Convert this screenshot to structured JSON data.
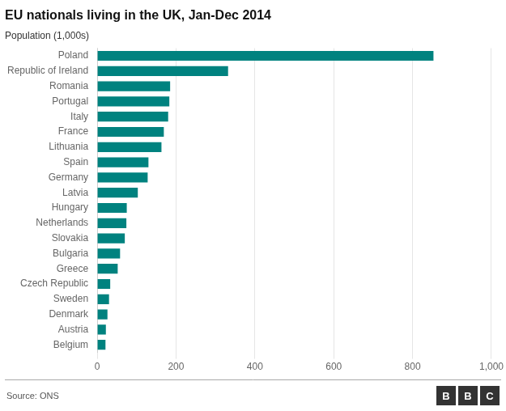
{
  "chart_data": {
    "type": "bar",
    "orientation": "horizontal",
    "title": "EU nationals living in the UK, Jan-Dec 2014",
    "subtitle": "Population (1,000s)",
    "annotations": [
      "Source: ONS",
      "BBC"
    ],
    "categories": [
      "Poland",
      "Republic of Ireland",
      "Romania",
      "Portugal",
      "Italy",
      "France",
      "Lithuania",
      "Spain",
      "Germany",
      "Latvia",
      "Hungary",
      "Netherlands",
      "Slovakia",
      "Bulgaria",
      "Greece",
      "Czech Republic",
      "Sweden",
      "Denmark",
      "Austria",
      "Belgium"
    ],
    "values": [
      853,
      332,
      185,
      183,
      180,
      169,
      163,
      130,
      128,
      103,
      75,
      74,
      70,
      58,
      52,
      33,
      30,
      26,
      22,
      21
    ],
    "color": "#00827f",
    "xlim": [
      0,
      1000
    ],
    "xticks": [
      0,
      200,
      400,
      600,
      800,
      {
        "value": 1000,
        "label": "1,000"
      }
    ],
    "grid": true
  }
}
